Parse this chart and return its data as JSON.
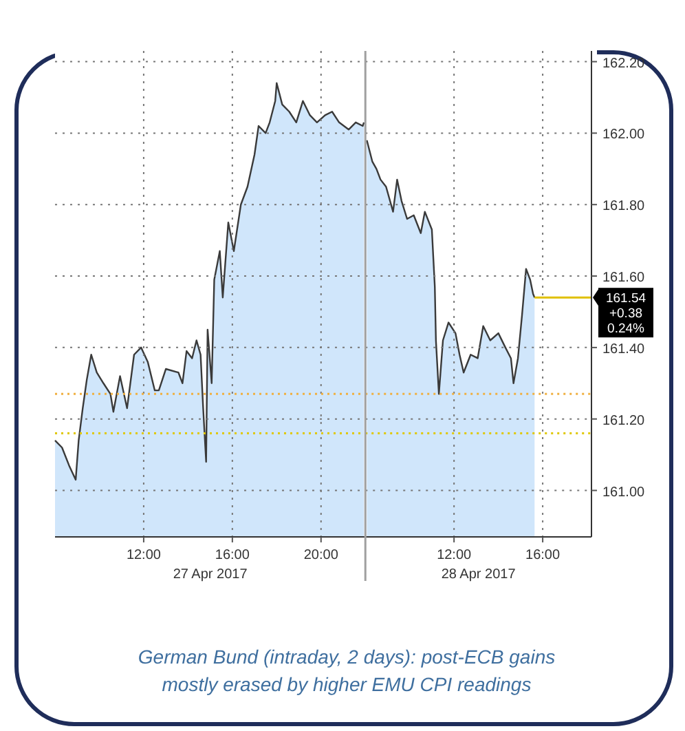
{
  "chart_data": [
    {
      "type": "area",
      "title": "German Bund (intraday, 2 days): post-ECB gains mostly erased by higher EMU CPI readings",
      "xlabel": "27 Apr 2017",
      "x": [
        "2017-04-27T08:00",
        "2017-04-27T08:19",
        "2017-04-27T08:38",
        "2017-04-27T08:56",
        "2017-04-27T09:04",
        "2017-04-27T09:15",
        "2017-04-27T09:26",
        "2017-04-27T09:38",
        "2017-04-27T09:53",
        "2017-04-27T10:11",
        "2017-04-27T10:30",
        "2017-04-27T10:38",
        "2017-04-27T10:56",
        "2017-04-27T11:15",
        "2017-04-27T11:34",
        "2017-04-27T11:53",
        "2017-04-27T12:11",
        "2017-04-27T12:30",
        "2017-04-27T12:41",
        "2017-04-27T13:00",
        "2017-04-27T13:34",
        "2017-04-27T13:45",
        "2017-04-27T13:56",
        "2017-04-27T14:11",
        "2017-04-27T14:23",
        "2017-04-27T14:34",
        "2017-04-27T14:41",
        "2017-04-27T14:49",
        "2017-04-27T14:53",
        "2017-04-27T15:04",
        "2017-04-27T15:11",
        "2017-04-27T15:26",
        "2017-04-27T15:34",
        "2017-04-27T15:49",
        "2017-04-27T16:04",
        "2017-04-27T16:23",
        "2017-04-27T16:41",
        "2017-04-27T17:00",
        "2017-04-27T17:11",
        "2017-04-27T17:30",
        "2017-04-27T17:41",
        "2017-04-27T17:56",
        "2017-04-27T18:00",
        "2017-04-27T18:15",
        "2017-04-27T18:34",
        "2017-04-27T18:53",
        "2017-04-27T19:11",
        "2017-04-27T19:30",
        "2017-04-27T19:49",
        "2017-04-27T20:11",
        "2017-04-27T20:30",
        "2017-04-27T20:49",
        "2017-04-27T21:15",
        "2017-04-27T21:34",
        "2017-04-27T21:53",
        "2017-04-27T21:56"
      ],
      "series": [
        {
          "color": "#3a3a3a",
          "values": [
            161.14,
            161.12,
            161.07,
            161.03,
            161.14,
            161.23,
            161.31,
            161.38,
            161.33,
            161.3,
            161.27,
            161.22,
            161.32,
            161.23,
            161.38,
            161.4,
            161.36,
            161.28,
            161.28,
            161.34,
            161.33,
            161.3,
            161.39,
            161.37,
            161.42,
            161.38,
            161.23,
            161.08,
            161.45,
            161.3,
            161.59,
            161.67,
            161.54,
            161.75,
            161.67,
            161.8,
            161.85,
            161.94,
            162.02,
            162.0,
            162.03,
            162.09,
            162.14,
            162.08,
            162.06,
            162.03,
            162.09,
            162.05,
            162.03,
            162.05,
            162.06,
            162.03,
            162.01,
            162.03,
            162.02,
            162.03
          ]
        }
      ],
      "xlim": [
        "2017-04-27T08:00",
        "2017-04-27T22:00"
      ],
      "ylim": [
        160.87,
        162.23
      ],
      "xticks": [
        {
          "value": "2017-04-27T12:00",
          "label": "12:00"
        },
        {
          "value": "2017-04-27T16:00",
          "label": "16:00"
        },
        {
          "value": "2017-04-27T20:00",
          "label": "20:00"
        }
      ],
      "yticks": [
        161.0,
        161.2,
        161.4,
        161.6,
        161.8,
        162.0,
        162.2
      ],
      "tick_labels": "x",
      "grid": true,
      "ref_lines": [
        {
          "axis": "y",
          "value": 161.27,
          "color": "#f0b040",
          "line_style": "dotted"
        },
        {
          "axis": "y",
          "value": 161.16,
          "color": "#e0c800",
          "line_style": "dotted"
        }
      ]
    },
    {
      "type": "area",
      "xlabel": "28 Apr 2017",
      "x": [
        "2017-04-28T08:04",
        "2017-04-28T08:19",
        "2017-04-28T08:30",
        "2017-04-28T08:41",
        "2017-04-28T08:56",
        "2017-04-28T09:15",
        "2017-04-28T09:26",
        "2017-04-28T09:38",
        "2017-04-28T09:53",
        "2017-04-28T10:11",
        "2017-04-28T10:30",
        "2017-04-28T10:41",
        "2017-04-28T11:00",
        "2017-04-28T11:08",
        "2017-04-28T11:11",
        "2017-04-28T11:19",
        "2017-04-28T11:30",
        "2017-04-28T11:45",
        "2017-04-28T12:04",
        "2017-04-28T12:15",
        "2017-04-28T12:26",
        "2017-04-28T12:45",
        "2017-04-28T13:04",
        "2017-04-28T13:19",
        "2017-04-28T13:38",
        "2017-04-28T14:00",
        "2017-04-28T14:19",
        "2017-04-28T14:34",
        "2017-04-28T14:41",
        "2017-04-28T14:53",
        "2017-04-28T15:04",
        "2017-04-28T15:15",
        "2017-04-28T15:26",
        "2017-04-28T15:34",
        "2017-04-28T15:38"
      ],
      "series": [
        {
          "color": "#3a3a3a",
          "values": [
            161.98,
            161.92,
            161.9,
            161.87,
            161.85,
            161.78,
            161.87,
            161.81,
            161.76,
            161.77,
            161.72,
            161.78,
            161.73,
            161.57,
            161.42,
            161.27,
            161.42,
            161.47,
            161.44,
            161.38,
            161.33,
            161.38,
            161.37,
            161.46,
            161.42,
            161.44,
            161.4,
            161.37,
            161.3,
            161.37,
            161.49,
            161.62,
            161.59,
            161.55,
            161.54
          ]
        }
      ],
      "xlim": [
        "2017-04-28T08:00",
        "2017-04-28T18:12"
      ],
      "ylim": [
        160.87,
        162.23
      ],
      "xticks": [
        {
          "value": "2017-04-28T12:00",
          "label": "12:00"
        },
        {
          "value": "2017-04-28T16:00",
          "label": "16:00"
        }
      ],
      "yticks": [
        {
          "value": 161.0,
          "label": "161.00"
        },
        {
          "value": 161.2,
          "label": "161.20"
        },
        {
          "value": 161.4,
          "label": "161.40"
        },
        {
          "value": 161.6,
          "label": "161.60"
        },
        {
          "value": 161.8,
          "label": "161.80"
        },
        {
          "value": 162.0,
          "label": "162.00"
        },
        {
          "value": 162.2,
          "label": "162.20"
        }
      ],
      "grid": true,
      "ref_lines": [
        {
          "axis": "y",
          "value": 161.27,
          "color": "#f0b040",
          "line_style": "dotted"
        },
        {
          "axis": "y",
          "value": 161.16,
          "color": "#e0c800",
          "line_style": "dotted"
        },
        {
          "axis": "y",
          "value": 161.54,
          "label": "161.54",
          "color": "#e0c000",
          "line_style": "solid"
        }
      ],
      "annotations": [
        "+0.38",
        "0.24%"
      ]
    }
  ]
}
